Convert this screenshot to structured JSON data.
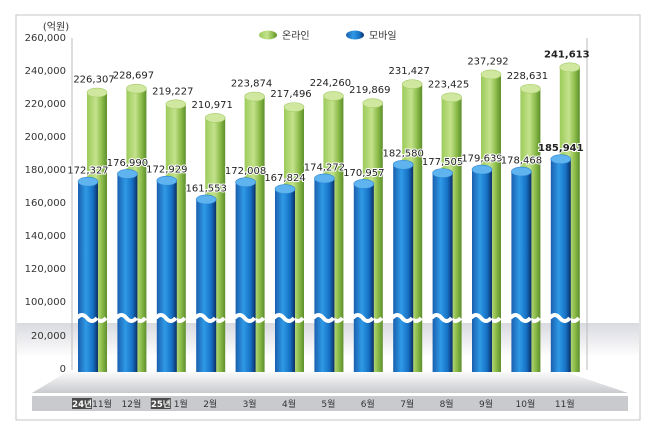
{
  "chart_data": {
    "type": "bar",
    "unit_label": "(억원)",
    "categories": [
      "11월",
      "12월",
      "1월",
      "2월",
      "3월",
      "4월",
      "5월",
      "6월",
      "7월",
      "8월",
      "9월",
      "10월",
      "11월"
    ],
    "year_badges": [
      {
        "index": 0,
        "label": "24년"
      },
      {
        "index": 2,
        "label": "25년"
      }
    ],
    "series": [
      {
        "name": "온라인",
        "color": "#8dbb4a",
        "values": [
          226307,
          228697,
          219227,
          210971,
          223874,
          217496,
          224260,
          219869,
          231427,
          223425,
          237292,
          228631,
          241613
        ]
      },
      {
        "name": "모바일",
        "color": "#1e7fd0",
        "values": [
          172327,
          176990,
          172929,
          161553,
          172008,
          167824,
          174272,
          170957,
          182580,
          177505,
          179639,
          178468,
          185941
        ]
      }
    ],
    "yticks": [
      0,
      20000,
      100000,
      120000,
      140000,
      160000,
      180000,
      200000,
      220000,
      240000,
      260000
    ],
    "ytick_labels": [
      "0",
      "20,000",
      "100,000",
      "120,000",
      "140,000",
      "160,000",
      "180,000",
      "200,000",
      "220,000",
      "240,000",
      "260,000"
    ],
    "axis_break": [
      20000,
      100000
    ],
    "ylim": [
      0,
      260000
    ],
    "legend_placement": "top-center",
    "highlight_last": true
  }
}
